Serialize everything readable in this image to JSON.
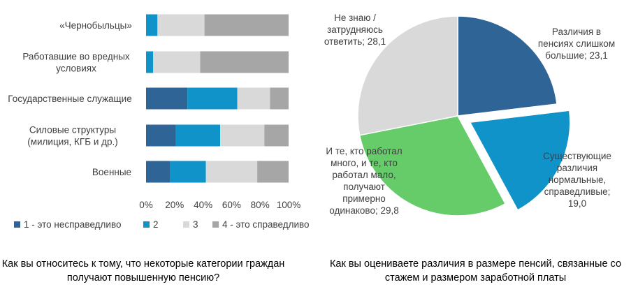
{
  "chart_data": [
    {
      "type": "bar",
      "stacked": true,
      "orientation": "horizontal",
      "caption": "Как вы относитесь к тому, что некоторые категории граждан получают повышенную пенсию?",
      "categories": [
        [
          "«Чернобыльцы»"
        ],
        [
          "Работавшие во вредных",
          "условиях"
        ],
        [
          "Государственные служащие"
        ],
        [
          "Силовые структуры",
          "(милиция, КГБ и др.)"
        ],
        [
          "Военные"
        ]
      ],
      "series": [
        {
          "name": "1 - это несправедливо",
          "color": "#2f6497",
          "values": [
            0,
            0,
            29,
            21,
            17
          ]
        },
        {
          "name": "2",
          "color": "#0f93c8",
          "values": [
            8,
            5,
            35,
            31,
            25
          ]
        },
        {
          "name": "3",
          "color": "#d9d9d9",
          "values": [
            33,
            33,
            23,
            31,
            36
          ]
        },
        {
          "name": "4 - это справедливо",
          "color": "#a6a6a6",
          "values": [
            59,
            62,
            13,
            17,
            22
          ]
        }
      ],
      "xlim": [
        0,
        100
      ],
      "xticks": [
        "0%",
        "20%",
        "40%",
        "60%",
        "80%",
        "100%"
      ],
      "legend": "bottom",
      "grid": false
    },
    {
      "type": "pie",
      "caption": "Как вы оцениваете различия в размере пенсий, связанные со стажем и размером заработной платы",
      "slices": [
        {
          "label": [
            "Различия в",
            "пенсиях слишком",
            "большие; 23,1"
          ],
          "value": 23.1,
          "color": "#2f6497",
          "exploded": false
        },
        {
          "label": [
            "Существующие",
            "различия",
            "нормальные,",
            "справедливые;",
            "19,0"
          ],
          "value": 19.0,
          "color": "#0f93c8",
          "exploded": true
        },
        {
          "label": [
            "И те, кто работал",
            "много, и те, кто",
            "работал мало,",
            "получают",
            "примерно",
            "одинаково; 29,8"
          ],
          "value": 29.8,
          "color": "#66cc6a",
          "exploded": false
        },
        {
          "label": [
            "Не знаю /",
            "затрудняюсь",
            "ответить; 28,1"
          ],
          "value": 28.1,
          "color": "#d9d9d9",
          "exploded": false
        }
      ],
      "legend": "none"
    }
  ]
}
